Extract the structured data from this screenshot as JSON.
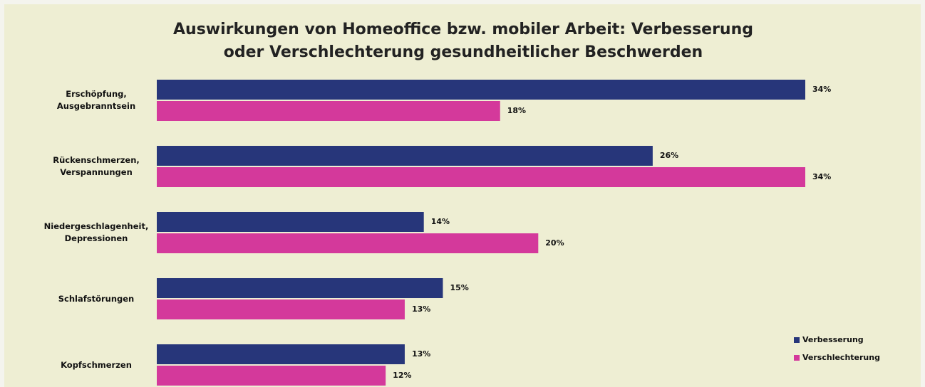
{
  "chart_data": {
    "type": "bar",
    "orientation": "horizontal",
    "title": "Auswirkungen von Homeoffice bzw. mobiler Arbeit: Verbesserung oder Verschlechterung gesundheitlicher Beschwerden",
    "categories": [
      "Erschöpfung, Ausgebranntsein",
      "Rückenschmerzen, Verspannungen",
      "Niedergeschlagenheit, Depressionen",
      "Schlafstörungen",
      "Kopfschmerzen"
    ],
    "series": [
      {
        "name": "Verbesserung",
        "color": "#27367a",
        "values": [
          34,
          26,
          14,
          15,
          13
        ],
        "value_labels": [
          "34%",
          "26%",
          "14%",
          "15%",
          "13%"
        ]
      },
      {
        "name": "Verschlechterung",
        "color": "#d4399b",
        "values": [
          18,
          34,
          20,
          13,
          12
        ],
        "value_labels": [
          "18%",
          "34%",
          "20%",
          "13%",
          "12%"
        ]
      }
    ],
    "legend": "lower right"
  }
}
